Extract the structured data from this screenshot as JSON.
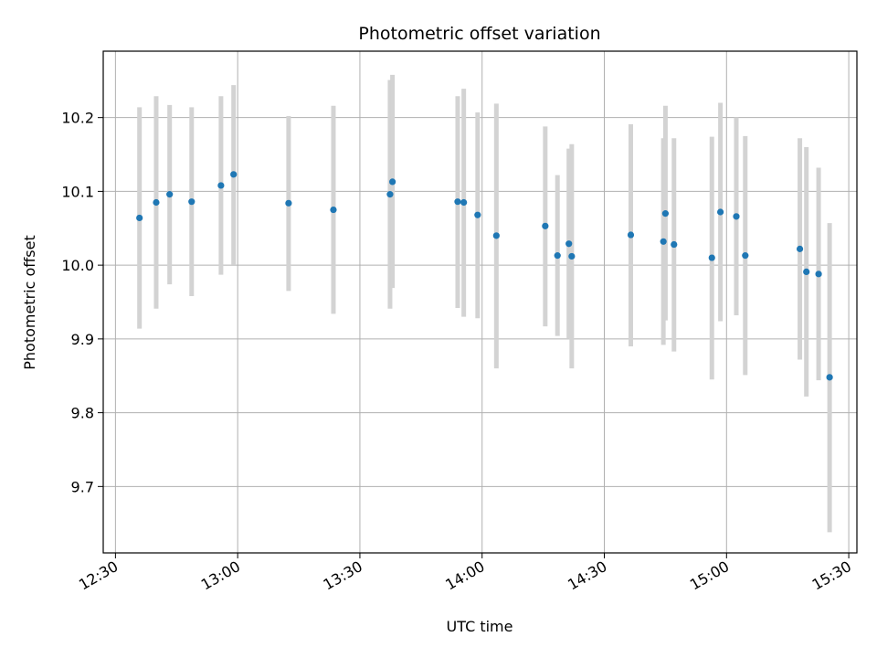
{
  "chart_data": {
    "type": "scatter",
    "title": "Photometric offset variation",
    "xlabel": "UTC time",
    "ylabel": "Photometric offset",
    "grid": true,
    "point_color": "#1f77b4",
    "errorbar_color": "#d3d3d3",
    "xlim_minutes": [
      747,
      932
    ],
    "ylim": [
      9.61,
      10.29
    ],
    "x_ticks": [
      {
        "label": "12:30",
        "minutes": 750
      },
      {
        "label": "13:00",
        "minutes": 780
      },
      {
        "label": "13:30",
        "minutes": 810
      },
      {
        "label": "14:00",
        "minutes": 840
      },
      {
        "label": "14:30",
        "minutes": 870
      },
      {
        "label": "15:00",
        "minutes": 900
      },
      {
        "label": "15:30",
        "minutes": 930
      }
    ],
    "y_ticks": [
      {
        "label": "9.7",
        "value": 9.7
      },
      {
        "label": "9.8",
        "value": 9.8
      },
      {
        "label": "9.9",
        "value": 9.9
      },
      {
        "label": "10.0",
        "value": 10.0
      },
      {
        "label": "10.1",
        "value": 10.1
      },
      {
        "label": "10.2",
        "value": 10.2
      }
    ],
    "points": [
      {
        "minutes": 755.9,
        "y": 10.064,
        "lo": 9.914,
        "hi": 10.214
      },
      {
        "minutes": 760.0,
        "y": 10.085,
        "lo": 9.941,
        "hi": 10.229
      },
      {
        "minutes": 763.3,
        "y": 10.096,
        "lo": 9.974,
        "hi": 10.217
      },
      {
        "minutes": 768.7,
        "y": 10.086,
        "lo": 9.958,
        "hi": 10.214
      },
      {
        "minutes": 775.9,
        "y": 10.108,
        "lo": 9.987,
        "hi": 10.229
      },
      {
        "minutes": 779.0,
        "y": 10.123,
        "lo": 10.001,
        "hi": 10.244
      },
      {
        "minutes": 792.5,
        "y": 10.084,
        "lo": 9.965,
        "hi": 10.202
      },
      {
        "minutes": 803.5,
        "y": 10.075,
        "lo": 9.934,
        "hi": 10.216
      },
      {
        "minutes": 817.4,
        "y": 10.096,
        "lo": 9.941,
        "hi": 10.251
      },
      {
        "minutes": 818.0,
        "y": 10.113,
        "lo": 9.969,
        "hi": 10.258
      },
      {
        "minutes": 834.0,
        "y": 10.086,
        "lo": 9.942,
        "hi": 10.229
      },
      {
        "minutes": 835.5,
        "y": 10.085,
        "lo": 9.93,
        "hi": 10.239
      },
      {
        "minutes": 838.9,
        "y": 10.068,
        "lo": 9.928,
        "hi": 10.207
      },
      {
        "minutes": 843.5,
        "y": 10.04,
        "lo": 9.86,
        "hi": 10.219
      },
      {
        "minutes": 855.5,
        "y": 10.053,
        "lo": 9.917,
        "hi": 10.188
      },
      {
        "minutes": 858.5,
        "y": 10.013,
        "lo": 9.904,
        "hi": 10.122
      },
      {
        "minutes": 861.3,
        "y": 10.029,
        "lo": 9.9,
        "hi": 10.158
      },
      {
        "minutes": 862.0,
        "y": 10.012,
        "lo": 9.86,
        "hi": 10.164
      },
      {
        "minutes": 876.5,
        "y": 10.041,
        "lo": 9.89,
        "hi": 10.191
      },
      {
        "minutes": 884.5,
        "y": 10.032,
        "lo": 9.892,
        "hi": 10.172
      },
      {
        "minutes": 885.0,
        "y": 10.07,
        "lo": 9.925,
        "hi": 10.216
      },
      {
        "minutes": 887.1,
        "y": 10.028,
        "lo": 9.883,
        "hi": 10.172
      },
      {
        "minutes": 896.4,
        "y": 10.01,
        "lo": 9.845,
        "hi": 10.174
      },
      {
        "minutes": 898.5,
        "y": 10.072,
        "lo": 9.924,
        "hi": 10.22
      },
      {
        "minutes": 902.4,
        "y": 10.066,
        "lo": 9.932,
        "hi": 10.2
      },
      {
        "minutes": 904.6,
        "y": 10.013,
        "lo": 9.851,
        "hi": 10.175
      },
      {
        "minutes": 918.0,
        "y": 10.022,
        "lo": 9.872,
        "hi": 10.172
      },
      {
        "minutes": 919.6,
        "y": 9.991,
        "lo": 9.822,
        "hi": 10.16
      },
      {
        "minutes": 922.6,
        "y": 9.988,
        "lo": 9.844,
        "hi": 10.132
      },
      {
        "minutes": 925.3,
        "y": 9.848,
        "lo": 9.638,
        "hi": 10.057
      }
    ]
  }
}
